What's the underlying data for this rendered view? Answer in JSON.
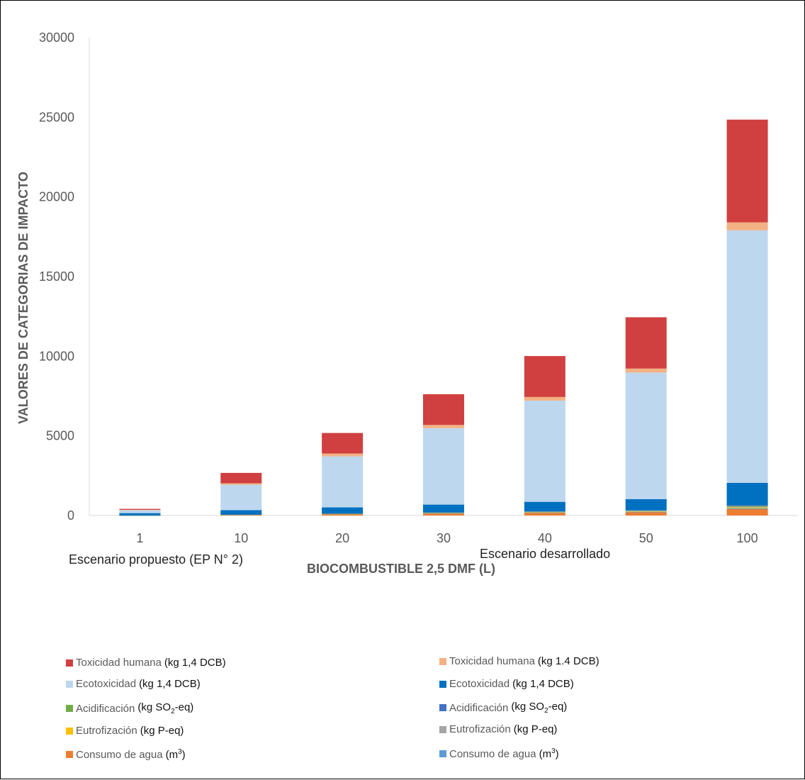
{
  "chart_data": {
    "type": "bar",
    "stacked": true,
    "categories": [
      "1",
      "10",
      "20",
      "30",
      "40",
      "50",
      "100"
    ],
    "xlabel": "BIOCOMBUSTIBLE 2,5 DMF (L)",
    "ylabel": "VALORES DE CATEGORIAS DE IMPACTO",
    "ylim": [
      0,
      30000
    ],
    "yticks": [
      "0",
      "5000",
      "10000",
      "15000",
      "20000",
      "25000",
      "30000"
    ],
    "gridlines": false,
    "legend_position": "bottom",
    "groups": [
      {
        "title": "Escenario propuesto (EP N° 2)"
      },
      {
        "title": "Escenario desarrollado"
      }
    ],
    "series": [
      {
        "name": "Consumo de agua",
        "unit": "(m³)",
        "group": 0,
        "color": "#ED7D31",
        "values": [
          5,
          40,
          80,
          120,
          160,
          200,
          400
        ]
      },
      {
        "name": "Consumo de agua",
        "unit": "(m³)",
        "group": 1,
        "color": "#5B9BD5",
        "values": [
          1,
          5,
          10,
          15,
          20,
          25,
          50
        ]
      },
      {
        "name": "Eutrofización",
        "unit": "(kg P-eq)",
        "group": 0,
        "color": "#FFC000",
        "values": [
          1,
          5,
          10,
          15,
          20,
          25,
          50
        ]
      },
      {
        "name": "Eutrofización",
        "unit": "(kg P-eq)",
        "group": 1,
        "color": "#A5A5A5",
        "values": [
          1,
          5,
          10,
          15,
          20,
          25,
          50
        ]
      },
      {
        "name": "Acidificación",
        "unit": "(kg SO2-eq)",
        "group": 0,
        "color": "#70AD47",
        "values": [
          1,
          5,
          10,
          15,
          20,
          25,
          50
        ]
      },
      {
        "name": "Acidificación",
        "unit": "(kg SO2-eq)",
        "group": 1,
        "color": "#4472C4",
        "values": [
          1,
          5,
          10,
          15,
          20,
          25,
          50
        ]
      },
      {
        "name": "Ecotoxicidad",
        "unit": "(kg 1,4 DCB)",
        "group": 1,
        "color": "#0070C0",
        "values": [
          140,
          270,
          380,
          490,
          600,
          700,
          1400
        ]
      },
      {
        "name": "Ecotoxicidad",
        "unit": "(kg 1,4 DCB)",
        "group": 0,
        "color": "#BDD7EE",
        "values": [
          190,
          1600,
          3200,
          4800,
          6350,
          7950,
          15850
        ]
      },
      {
        "name": "Toxicidad humana",
        "unit": "(kg 1.4 DCB)",
        "group": 1,
        "color": "#F4B183",
        "values": [
          20,
          90,
          180,
          200,
          230,
          250,
          500
        ]
      },
      {
        "name": "Toxicidad humana",
        "unit": "(kg 1,4 DCB)",
        "group": 0,
        "color": "#D04040",
        "values": [
          60,
          650,
          1290,
          1930,
          2570,
          3220,
          6450
        ]
      }
    ]
  },
  "legend": {
    "left": [
      {
        "label": "Toxicidad humana",
        "unit": "(kg 1,4 DCB)",
        "color": "#D04040"
      },
      {
        "label": "Ecotoxicidad",
        "unit": "(kg 1,4 DCB)",
        "color": "#BDD7EE"
      },
      {
        "label": "Acidificación",
        "unit_pre": "(kg SO",
        "unit_sub": "2",
        "unit_post": "-eq)",
        "color": "#70AD47"
      },
      {
        "label": "Eutrofización",
        "unit": "(kg P-eq)",
        "color": "#FFC000"
      },
      {
        "label": "Consumo de agua",
        "unit_pre": "(m",
        "unit_sup": "3",
        "unit_post": ")",
        "color": "#ED7D31"
      }
    ],
    "right": [
      {
        "label": "Toxicidad humana",
        "unit": "(kg 1.4 DCB)",
        "color": "#F4B183"
      },
      {
        "label": "Ecotoxicidad",
        "unit": "(kg 1,4 DCB)",
        "color": "#0070C0"
      },
      {
        "label": "Acidificación",
        "unit_pre": "(kg SO",
        "unit_sub": "2",
        "unit_post": "-eq)",
        "color": "#4472C4"
      },
      {
        "label": "Eutrofización",
        "unit": "(kg P-eq)",
        "color": "#A5A5A5"
      },
      {
        "label": "Consumo de agua",
        "unit_pre": "(m",
        "unit_sup": "3",
        "unit_post": ")",
        "color": "#5B9BD5"
      }
    ]
  }
}
